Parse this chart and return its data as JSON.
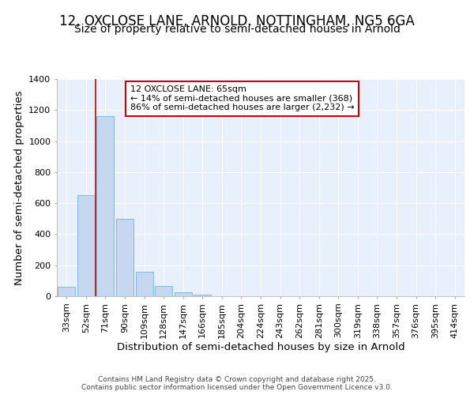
{
  "title_line1": "12, OXCLOSE LANE, ARNOLD, NOTTINGHAM, NG5 6GA",
  "title_line2": "Size of property relative to semi-detached houses in Arnold",
  "xlabel": "Distribution of semi-detached houses by size in Arnold",
  "ylabel": "Number of semi-detached properties",
  "categories": [
    "33sqm",
    "52sqm",
    "71sqm",
    "90sqm",
    "109sqm",
    "128sqm",
    "147sqm",
    "166sqm",
    "185sqm",
    "204sqm",
    "224sqm",
    "243sqm",
    "262sqm",
    "281sqm",
    "300sqm",
    "319sqm",
    "338sqm",
    "357sqm",
    "376sqm",
    "395sqm",
    "414sqm"
  ],
  "values": [
    60,
    650,
    1160,
    500,
    160,
    65,
    25,
    10,
    0,
    0,
    0,
    0,
    0,
    0,
    0,
    0,
    0,
    0,
    0,
    0,
    0
  ],
  "bar_color": "#c5d8f0",
  "bar_edge_color": "#7aaed6",
  "vline_x": 1.5,
  "vline_color": "#cc0000",
  "annotation_text": "12 OXCLOSE LANE: 65sqm\n← 14% of semi-detached houses are smaller (368)\n86% of semi-detached houses are larger (2,232) →",
  "annotation_box_color": "#ffffff",
  "annotation_box_edge": "#cc0000",
  "ylim": [
    0,
    1400
  ],
  "yticks": [
    0,
    200,
    400,
    600,
    800,
    1000,
    1200,
    1400
  ],
  "background_color": "#ffffff",
  "plot_bg_color": "#e8f0fb",
  "footer_text": "Contains HM Land Registry data © Crown copyright and database right 2025.\nContains public sector information licensed under the Open Government Licence v3.0.",
  "grid_color": "#ffffff",
  "title_fontsize": 12,
  "subtitle_fontsize": 10,
  "tick_fontsize": 8,
  "label_fontsize": 9.5,
  "annotation_fontsize": 8
}
